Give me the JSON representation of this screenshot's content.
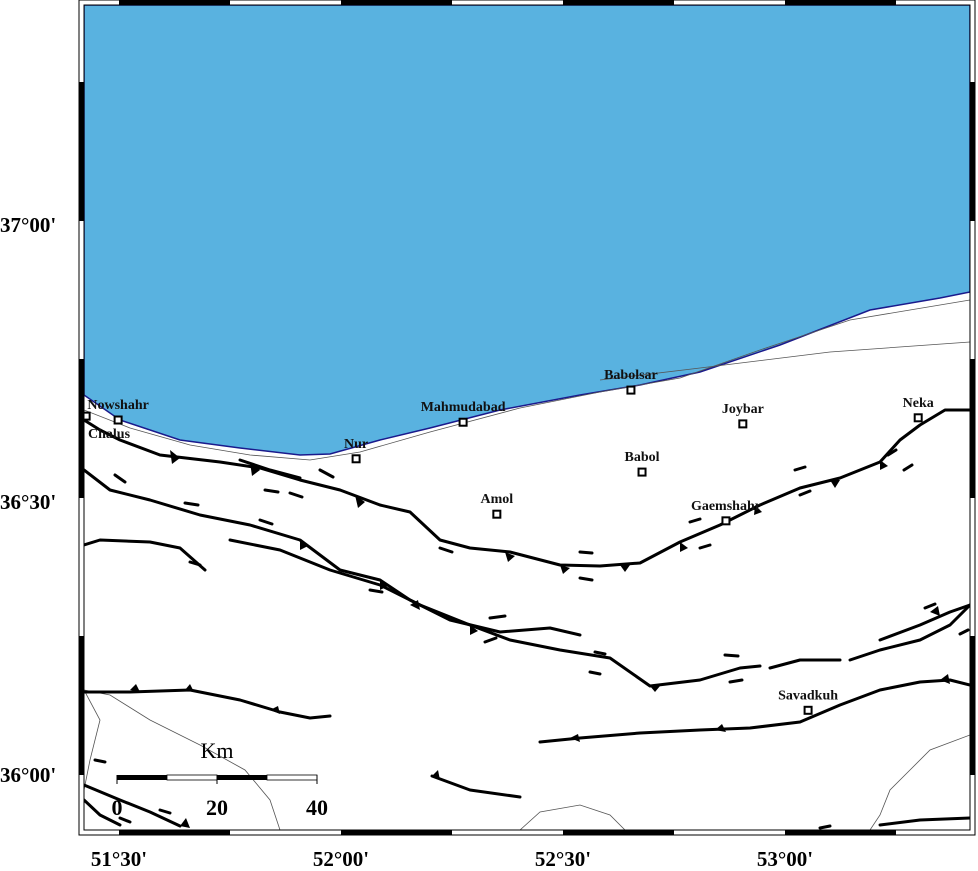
{
  "map": {
    "sea_color": "#59b2e0",
    "coast_color": "#1a1a8c",
    "land_color": "#ffffff",
    "lon_range": [
      "51°25'",
      "53°25'"
    ],
    "lat_range": [
      "35°56'",
      "37°15'"
    ]
  },
  "axes": {
    "lon_ticks": [
      "51°30'",
      "52°00'",
      "52°30'",
      "53°00'"
    ],
    "lat_ticks": [
      "37°00'",
      "36°30'",
      "36°00'"
    ]
  },
  "scale_bar": {
    "unit": "Km",
    "labels": [
      "0",
      "20",
      "40"
    ]
  },
  "cities": [
    {
      "name": "Chalus",
      "lon": 51.426,
      "lat": 36.655
    },
    {
      "name": "Nowshahr",
      "lon": 51.498,
      "lat": 36.648
    },
    {
      "name": "Nur",
      "lon": 52.034,
      "lat": 36.578
    },
    {
      "name": "Mahmudabad",
      "lon": 52.275,
      "lat": 36.644
    },
    {
      "name": "Babolsar",
      "lon": 52.653,
      "lat": 36.702
    },
    {
      "name": "Joybar",
      "lon": 52.905,
      "lat": 36.641
    },
    {
      "name": "Neka",
      "lon": 53.3,
      "lat": 36.652
    },
    {
      "name": "Babol",
      "lon": 52.678,
      "lat": 36.554
    },
    {
      "name": "Amol",
      "lon": 52.351,
      "lat": 36.478
    },
    {
      "name": "Gaemshahr",
      "lon": 52.867,
      "lat": 36.466
    },
    {
      "name": "Savadkuh",
      "lon": 53.052,
      "lat": 36.124
    }
  ],
  "legend_symbols": {
    "city": "square-marker-icon",
    "thrust_fault": "fault-line-with-triangles",
    "strike_slip": "half-arrow-icon"
  }
}
